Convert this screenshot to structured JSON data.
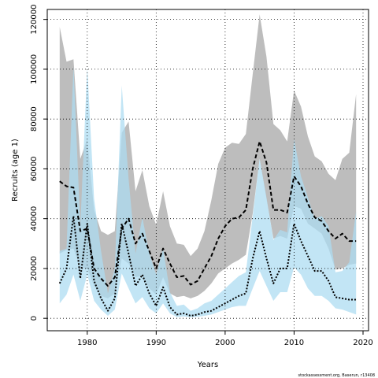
{
  "chart_data": {
    "type": "area",
    "title": "",
    "xlabel": "Years",
    "ylabel": "Recruits (age 1)",
    "xlim": [
      1974.2,
      2020.8
    ],
    "ylim": [
      -5000,
      124000
    ],
    "x_ticks": [
      1980,
      1990,
      2000,
      2010,
      2020
    ],
    "y_ticks": [
      0,
      20000,
      40000,
      60000,
      80000,
      100000,
      120000
    ],
    "grid": true,
    "grid_style": "dotted",
    "legend": "none",
    "footnote": "stockassessment.org, Baserun, r13408",
    "x": [
      1976,
      1977,
      1978,
      1979,
      1980,
      1981,
      1982,
      1983,
      1984,
      1985,
      1986,
      1987,
      1988,
      1989,
      1990,
      1991,
      1992,
      1993,
      1994,
      1995,
      1996,
      1997,
      1998,
      1999,
      2000,
      2001,
      2002,
      2003,
      2004,
      2005,
      2006,
      2007,
      2008,
      2009,
      2010,
      2011,
      2012,
      2013,
      2014,
      2015,
      2016,
      2017,
      2018,
      2019
    ],
    "series": [
      {
        "kind": "median",
        "color": "#000000",
        "line": "dashed",
        "values": [
          55000,
          53000,
          52500,
          35000,
          36000,
          20000,
          16000,
          13000,
          16500,
          36000,
          40000,
          30000,
          34000,
          27000,
          20000,
          28000,
          22000,
          16500,
          17000,
          13500,
          15000,
          20000,
          25000,
          32000,
          37000,
          40000,
          40500,
          43500,
          60000,
          71000,
          62500,
          43500,
          43500,
          42500,
          57000,
          53000,
          46000,
          40500,
          39000,
          35000,
          32000,
          34000,
          31000,
          31000
        ],
        "band_color": "#bdbdbd",
        "lower": [
          26000,
          27500,
          28000,
          20000,
          20000,
          13000,
          9000,
          8000,
          10000,
          24000,
          22000,
          16500,
          17000,
          12000,
          9500,
          16500,
          10000,
          8500,
          9000,
          8000,
          9000,
          11000,
          14000,
          18000,
          20000,
          22000,
          23500,
          25500,
          42000,
          64000,
          48000,
          32000,
          33000,
          32000,
          45000,
          44000,
          38000,
          36000,
          34000,
          28000,
          19500,
          20000,
          21500,
          22000
        ],
        "upper": [
          117000,
          103000,
          104000,
          64000,
          72000,
          43500,
          35000,
          33500,
          35000,
          74500,
          79000,
          51000,
          59500,
          45000,
          37500,
          51000,
          37000,
          30000,
          29500,
          25000,
          28000,
          35000,
          47500,
          62000,
          68500,
          70500,
          70000,
          74000,
          98000,
          122000,
          105000,
          78000,
          75500,
          71000,
          91500,
          85000,
          73000,
          65000,
          63000,
          58000,
          55500,
          64000,
          66500,
          90000
        ]
      },
      {
        "kind": "estimate",
        "color": "#000000",
        "line": "dotted",
        "values": [
          14000,
          20000,
          41000,
          16000,
          38000,
          15000,
          8000,
          3000,
          8000,
          38000,
          26000,
          13000,
          17500,
          10000,
          5000,
          12500,
          4500,
          1500,
          2000,
          1000,
          1500,
          2500,
          3000,
          4500,
          6000,
          7500,
          9000,
          10000,
          24000,
          35000,
          24000,
          14000,
          20000,
          20000,
          38000,
          31000,
          25000,
          19000,
          19000,
          15000,
          8500,
          8000,
          7500,
          7500
        ],
        "band_color": "#aedcf2",
        "lower": [
          6000,
          9500,
          17500,
          7000,
          17500,
          7000,
          3500,
          1000,
          3500,
          18000,
          12000,
          6000,
          8500,
          4000,
          2000,
          6000,
          2000,
          500,
          800,
          400,
          600,
          1000,
          1500,
          2500,
          3500,
          4500,
          5000,
          5000,
          12000,
          19000,
          13000,
          7000,
          10500,
          10500,
          20500,
          17500,
          12000,
          9000,
          9000,
          7000,
          4000,
          3500,
          2500,
          1500
        ],
        "upper": [
          27000,
          28000,
          101000,
          37000,
          101000,
          48000,
          27000,
          10000,
          20000,
          93500,
          56000,
          26000,
          40500,
          26000,
          17500,
          28000,
          10500,
          5000,
          5500,
          3000,
          4000,
          6000,
          7000,
          9500,
          12000,
          14500,
          17000,
          18500,
          41000,
          64000,
          48500,
          31500,
          35500,
          34500,
          72000,
          57000,
          48500,
          40000,
          41000,
          37000,
          18500,
          19000,
          22500,
          43000
        ]
      }
    ]
  }
}
